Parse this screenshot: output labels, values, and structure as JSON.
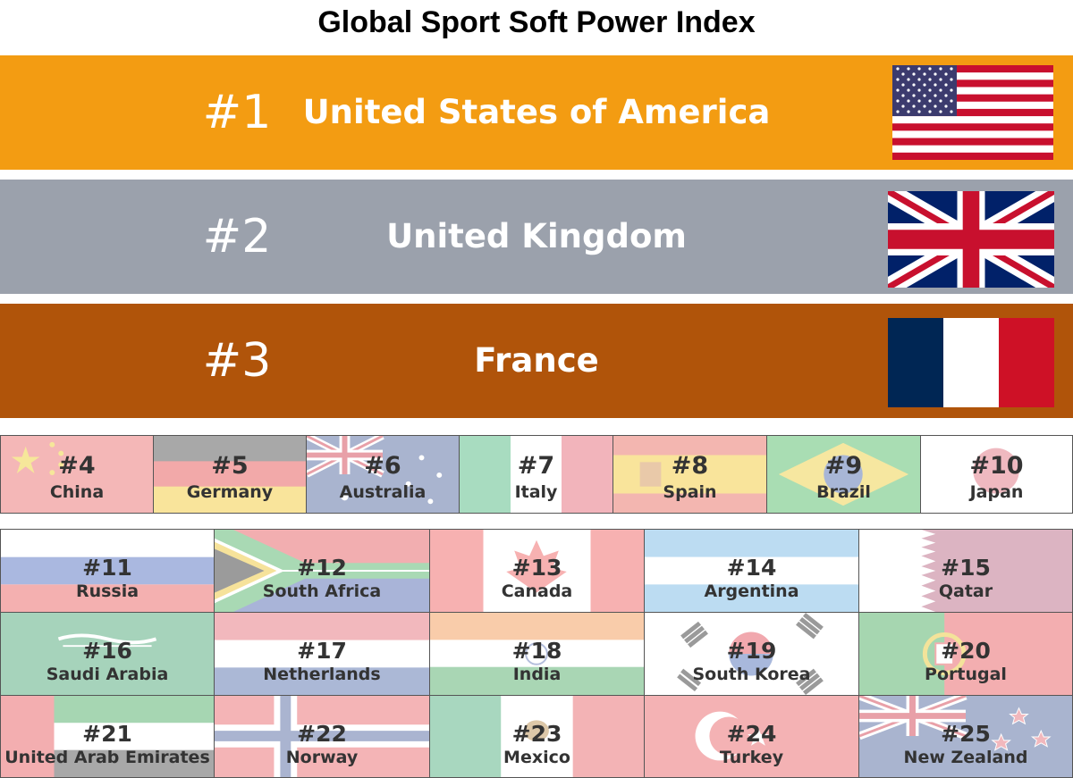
{
  "title": "Global Sport Soft Power Index",
  "top": [
    {
      "rank": "#1",
      "country": "United States of America",
      "color": "#f39c12",
      "flag": "usa-flag-icon"
    },
    {
      "rank": "#2",
      "country": "United Kingdom",
      "color": "#9ba1ac",
      "flag": "uk-flag-icon"
    },
    {
      "rank": "#3",
      "country": "France",
      "color": "#b0540a",
      "flag": "france-flag-icon"
    }
  ],
  "row_a": [
    {
      "rank": "#4",
      "country": "China"
    },
    {
      "rank": "#5",
      "country": "Germany"
    },
    {
      "rank": "#6",
      "country": "Australia"
    },
    {
      "rank": "#7",
      "country": "Italy"
    },
    {
      "rank": "#8",
      "country": "Spain"
    },
    {
      "rank": "#9",
      "country": "Brazil"
    },
    {
      "rank": "#10",
      "country": "Japan"
    }
  ],
  "row_b": [
    {
      "rank": "#11",
      "country": "Russia"
    },
    {
      "rank": "#12",
      "country": "South Africa"
    },
    {
      "rank": "#13",
      "country": "Canada"
    },
    {
      "rank": "#14",
      "country": "Argentina"
    },
    {
      "rank": "#15",
      "country": "Qatar"
    }
  ],
  "row_c": [
    {
      "rank": "#16",
      "country": "Saudi Arabia"
    },
    {
      "rank": "#17",
      "country": "Netherlands"
    },
    {
      "rank": "#18",
      "country": "India"
    },
    {
      "rank": "#19",
      "country": "South Korea"
    },
    {
      "rank": "#20",
      "country": "Portugal"
    }
  ],
  "row_d": [
    {
      "rank": "#21",
      "country": "United Arab Emirates"
    },
    {
      "rank": "#22",
      "country": "Norway"
    },
    {
      "rank": "#23",
      "country": "Mexico"
    },
    {
      "rank": "#24",
      "country": "Turkey"
    },
    {
      "rank": "#25",
      "country": "New Zealand"
    }
  ]
}
